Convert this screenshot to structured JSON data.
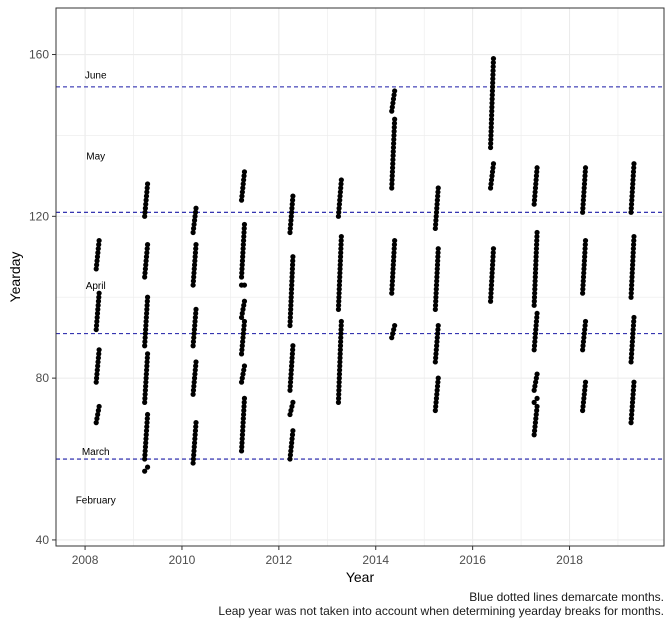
{
  "chart_data": {
    "type": "scatter",
    "title": "",
    "xlabel": "Year",
    "ylabel": "Yearday",
    "xlim": [
      2007.4,
      2019.95
    ],
    "ylim": [
      38.5,
      171.5
    ],
    "x_ticks": [
      2008,
      2010,
      2012,
      2014,
      2016,
      2018
    ],
    "y_ticks": [
      40,
      80,
      120,
      160
    ],
    "grid": true,
    "legend": "none",
    "month_lines": [
      {
        "label": "February",
        "y": null,
        "label_y": 50
      },
      {
        "label": "March",
        "y": 60,
        "label_y": 62
      },
      {
        "label": "April",
        "y": 91,
        "label_y": 103
      },
      {
        "label": "May",
        "y": 121,
        "label_y": 135
      },
      {
        "label": "June",
        "y": 152,
        "label_y": 155
      }
    ],
    "segments": [
      {
        "x": 2008.23,
        "ranges": [
          [
            69,
            73
          ],
          [
            79,
            87
          ],
          [
            92,
            101
          ],
          [
            107,
            114
          ]
        ]
      },
      {
        "x": 2009.23,
        "ranges": [
          [
            57,
            58
          ],
          [
            60,
            71
          ],
          [
            74,
            86
          ],
          [
            88,
            100
          ],
          [
            105,
            113
          ],
          [
            120,
            128
          ]
        ]
      },
      {
        "x": 2010.23,
        "ranges": [
          [
            59,
            69
          ],
          [
            76,
            84
          ],
          [
            88,
            97
          ],
          [
            103,
            113
          ],
          [
            116,
            122
          ]
        ]
      },
      {
        "x": 2011.23,
        "ranges": [
          [
            62,
            75
          ],
          [
            79,
            83
          ],
          [
            86,
            94
          ],
          [
            95,
            99
          ],
          [
            103,
            103
          ],
          [
            105,
            118
          ],
          [
            124,
            131
          ]
        ]
      },
      {
        "x": 2012.23,
        "ranges": [
          [
            60,
            67
          ],
          [
            71,
            74
          ],
          [
            77,
            88
          ],
          [
            93,
            110
          ],
          [
            116,
            125
          ]
        ]
      },
      {
        "x": 2013.23,
        "ranges": [
          [
            74,
            94
          ],
          [
            97,
            115
          ],
          [
            120,
            129
          ]
        ]
      },
      {
        "x": 2014.33,
        "ranges": [
          [
            90,
            93
          ],
          [
            101,
            114
          ],
          [
            127,
            144
          ],
          [
            146,
            151
          ]
        ]
      },
      {
        "x": 2015.23,
        "ranges": [
          [
            72,
            80
          ],
          [
            84,
            93
          ],
          [
            97,
            112
          ],
          [
            117,
            127
          ]
        ]
      },
      {
        "x": 2016.37,
        "ranges": [
          [
            99,
            112
          ],
          [
            127,
            133
          ],
          [
            137,
            159
          ]
        ]
      },
      {
        "x": 2017.27,
        "ranges": [
          [
            66,
            73
          ],
          [
            74,
            75
          ],
          [
            77,
            81
          ],
          [
            87,
            96
          ],
          [
            98,
            116
          ],
          [
            123,
            132
          ]
        ]
      },
      {
        "x": 2018.27,
        "ranges": [
          [
            72,
            79
          ],
          [
            87,
            94
          ],
          [
            101,
            114
          ],
          [
            121,
            132
          ]
        ]
      },
      {
        "x": 2019.27,
        "ranges": [
          [
            69,
            79
          ],
          [
            84,
            95
          ],
          [
            100,
            115
          ],
          [
            121,
            133
          ]
        ]
      }
    ]
  },
  "caption": {
    "line1": "Blue dotted lines demarcate months.",
    "line2": "Leap year was not taken into account when determining yearday breaks for months."
  },
  "colors": {
    "points": "#000000",
    "month_line": "#1a1aa6",
    "grid": "#ebebeb",
    "axis_text": "#4d4d4d"
  }
}
